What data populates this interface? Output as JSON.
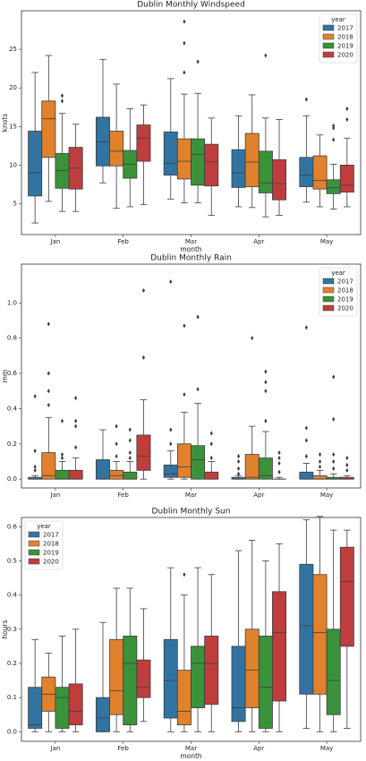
{
  "chart_data": [
    {
      "type": "box",
      "title": "Dublin Monthly Windspeed",
      "xlabel": "month",
      "ylabel": "knots",
      "categories": [
        "Jan",
        "Feb",
        "Mar",
        "Apr",
        "May"
      ],
      "legend_title": "year",
      "legend": "upper right",
      "ylim": [
        1,
        30
      ],
      "yticks": [
        5,
        10,
        15,
        20,
        25
      ],
      "series": [
        {
          "name": "2017",
          "color": "#3274a1",
          "values": [
            {
              "min": 2.5,
              "q1": 6,
              "median": 9,
              "q3": 14.4,
              "max": 22,
              "outliers": []
            },
            {
              "min": 7.7,
              "q1": 9.9,
              "median": 13,
              "q3": 16.2,
              "max": 23.7,
              "outliers": []
            },
            {
              "min": 5.6,
              "q1": 8.7,
              "median": 10.2,
              "q3": 14.3,
              "max": 21.2,
              "outliers": []
            },
            {
              "min": 4.6,
              "q1": 7.1,
              "median": 9,
              "q3": 12,
              "max": 16.4,
              "outliers": []
            },
            {
              "min": 5.2,
              "q1": 7.2,
              "median": 8.7,
              "q3": 11,
              "max": 16.4,
              "outliers": [
                18.5
              ]
            }
          ]
        },
        {
          "name": "2018",
          "color": "#e1812c",
          "values": [
            {
              "min": 5.3,
              "q1": 11,
              "median": 16,
              "q3": 18.3,
              "max": 24.2,
              "outliers": []
            },
            {
              "min": 4.4,
              "q1": 9.9,
              "median": 11.8,
              "q3": 14.4,
              "max": 20.5,
              "outliers": []
            },
            {
              "min": 5.1,
              "q1": 8.2,
              "median": 10.5,
              "q3": 13.4,
              "max": 19.2,
              "outliers": [
                22,
                25.8,
                28.6
              ]
            },
            {
              "min": 4.5,
              "q1": 7.2,
              "median": 10.4,
              "q3": 14.1,
              "max": 19.1,
              "outliers": []
            },
            {
              "min": 4.6,
              "q1": 6.9,
              "median": 8,
              "q3": 11.2,
              "max": 13.9,
              "outliers": []
            }
          ]
        },
        {
          "name": "2019",
          "color": "#3a923a",
          "values": [
            {
              "min": 4,
              "q1": 7,
              "median": 9.3,
              "q3": 11.5,
              "max": 16.7,
              "outliers": [
                18.3,
                19
              ]
            },
            {
              "min": 4.6,
              "q1": 8.3,
              "median": 10.1,
              "q3": 11.9,
              "max": 17.3,
              "outliers": []
            },
            {
              "min": 5.1,
              "q1": 7.4,
              "median": 11.4,
              "q3": 13.4,
              "max": 19.3,
              "outliers": [
                23.4
              ]
            },
            {
              "min": 3.3,
              "q1": 6.4,
              "median": 7.7,
              "q3": 11.8,
              "max": 16.1,
              "outliers": [
                24.2
              ]
            },
            {
              "min": 4.3,
              "q1": 6.3,
              "median": 7.1,
              "q3": 8.1,
              "max": 10.1,
              "outliers": [
                13.3,
                14.8,
                15.1
              ]
            }
          ]
        },
        {
          "name": "2020",
          "color": "#c03d3e",
          "values": [
            {
              "min": 4,
              "q1": 6.9,
              "median": 9.6,
              "q3": 12.3,
              "max": 15.3,
              "outliers": []
            },
            {
              "min": 4.9,
              "q1": 10.5,
              "median": 13.5,
              "q3": 15.2,
              "max": 17.8,
              "outliers": []
            },
            {
              "min": 3.5,
              "q1": 7.3,
              "median": 10.4,
              "q3": 12.7,
              "max": 16.1,
              "outliers": []
            },
            {
              "min": 3.5,
              "q1": 5.5,
              "median": 7.6,
              "q3": 10.7,
              "max": 15.9,
              "outliers": []
            },
            {
              "min": 4.6,
              "q1": 6.5,
              "median": 7.4,
              "q3": 10,
              "max": 13.5,
              "outliers": [
                15.9,
                17.3
              ]
            }
          ]
        }
      ]
    },
    {
      "type": "box",
      "title": "Dublin Monthly Rain",
      "ylabel": "mm",
      "categories": [
        "Jan",
        "Feb",
        "Mar",
        "Apr",
        "May"
      ],
      "legend_title": "year",
      "legend": "upper right",
      "ylim": [
        -0.05,
        1.22
      ],
      "yticks": [
        {
          "value": 0,
          "label": "0.0"
        },
        0.2,
        0.4,
        0.6,
        0.8,
        {
          "value": 1,
          "label": "1.0"
        }
      ],
      "series": [
        {
          "name": "2017",
          "color": "#3274a1",
          "values": [
            {
              "min": 0,
              "q1": 0,
              "median": 0,
              "q3": 0.01,
              "max": 0.02,
              "outliers": [
                0.05,
                0.07,
                0.16,
                0.47
              ]
            },
            {
              "min": 0,
              "q1": 0,
              "median": 0,
              "q3": 0.11,
              "max": 0.28,
              "outliers": []
            },
            {
              "min": 0,
              "q1": 0.01,
              "median": 0.03,
              "q3": 0.08,
              "max": 0.16,
              "outliers": [
                0.2,
                0.28,
                1.12
              ]
            },
            {
              "min": 0,
              "q1": 0,
              "median": 0,
              "q3": 0.01,
              "max": 0.02,
              "outliers": [
                0.03,
                0.06,
                0.1,
                0.13
              ]
            },
            {
              "min": 0,
              "q1": 0,
              "median": 0,
              "q3": 0.04,
              "max": 0.09,
              "outliers": [
                0.13,
                0.22,
                0.29,
                0.86
              ]
            }
          ]
        },
        {
          "name": "2018",
          "color": "#e1812c",
          "values": [
            {
              "min": 0,
              "q1": 0,
              "median": 0.02,
              "q3": 0.15,
              "max": 0.35,
              "outliers": [
                0.42,
                0.5,
                0.6,
                0.88
              ]
            },
            {
              "min": 0,
              "q1": 0,
              "median": 0.02,
              "q3": 0.05,
              "max": 0.1,
              "outliers": [
                0.13,
                0.2,
                0.3
              ]
            },
            {
              "min": 0,
              "q1": 0.01,
              "median": 0.07,
              "q3": 0.2,
              "max": 0.38,
              "outliers": [
                0.48,
                0.87
              ]
            },
            {
              "min": 0,
              "q1": 0,
              "median": 0.01,
              "q3": 0.14,
              "max": 0.3,
              "outliers": [
                0.8
              ]
            },
            {
              "min": 0,
              "q1": 0,
              "median": 0,
              "q3": 0.02,
              "max": 0.05,
              "outliers": [
                0.07,
                0.1,
                0.14
              ]
            }
          ]
        },
        {
          "name": "2019",
          "color": "#3a923a",
          "values": [
            {
              "min": 0,
              "q1": 0,
              "median": 0,
              "q3": 0.05,
              "max": 0.1,
              "outliers": [
                0.12,
                0.14,
                0.33
              ]
            },
            {
              "min": 0,
              "q1": 0,
              "median": 0,
              "q3": 0.04,
              "max": 0.1,
              "outliers": [
                0.12,
                0.15,
                0.22,
                0.28
              ]
            },
            {
              "min": 0,
              "q1": 0,
              "median": 0.11,
              "q3": 0.19,
              "max": 0.43,
              "outliers": [
                0.51,
                0.92
              ]
            },
            {
              "min": 0,
              "q1": 0,
              "median": 0.02,
              "q3": 0.12,
              "max": 0.27,
              "outliers": [
                0.33,
                0.5,
                0.55,
                0.61
              ]
            },
            {
              "min": 0,
              "q1": 0,
              "median": 0,
              "q3": 0.01,
              "max": 0.03,
              "outliers": [
                0.06,
                0.1,
                0.14,
                0.34,
                0.58
              ]
            }
          ]
        },
        {
          "name": "2020",
          "color": "#c03d3e",
          "values": [
            {
              "min": 0,
              "q1": 0,
              "median": 0,
              "q3": 0.05,
              "max": 0.12,
              "outliers": [
                0.18,
                0.3,
                0.33,
                0.46
              ]
            },
            {
              "min": 0,
              "q1": 0.05,
              "median": 0.13,
              "q3": 0.25,
              "max": 0.45,
              "outliers": [
                0.69,
                1.07
              ]
            },
            {
              "min": 0,
              "q1": 0,
              "median": 0,
              "q3": 0.04,
              "max": 0.1,
              "outliers": [
                0.12,
                0.2,
                0.26
              ]
            },
            {
              "min": 0,
              "q1": 0,
              "median": 0,
              "q3": 0,
              "max": 0.01,
              "outliers": [
                0.04,
                0.09,
                0.12,
                0.15
              ]
            },
            {
              "min": 0,
              "q1": 0,
              "median": 0,
              "q3": 0.01,
              "max": 0.02,
              "outliers": [
                0.05,
                0.08,
                0.12
              ]
            }
          ]
        }
      ]
    },
    {
      "type": "box",
      "title": "Dublin Monthly Sun",
      "xlabel": "month",
      "ylabel": "hours",
      "categories": [
        "Jan",
        "Feb",
        "Mar",
        "Apr",
        "May"
      ],
      "legend_title": "year",
      "legend": "upper left",
      "ylim": [
        -0.028,
        0.627
      ],
      "yticks": [
        {
          "value": 0,
          "label": "0.0"
        },
        0.1,
        0.2,
        0.3,
        0.4,
        0.5,
        0.6
      ],
      "series": [
        {
          "name": "2017",
          "color": "#3274a1",
          "values": [
            {
              "min": 0,
              "q1": 0.01,
              "median": 0.02,
              "q3": 0.13,
              "max": 0.27,
              "outliers": []
            },
            {
              "min": 0,
              "q1": 0,
              "median": 0.04,
              "q3": 0.1,
              "max": 0.32,
              "outliers": []
            },
            {
              "min": 0,
              "q1": 0.04,
              "median": 0.15,
              "q3": 0.27,
              "max": 0.48,
              "outliers": []
            },
            {
              "min": 0,
              "q1": 0.03,
              "median": 0.07,
              "q3": 0.25,
              "max": 0.53,
              "outliers": []
            },
            {
              "min": 0.01,
              "q1": 0.11,
              "median": 0.31,
              "q3": 0.49,
              "max": 0.62,
              "outliers": []
            }
          ]
        },
        {
          "name": "2018",
          "color": "#e1812c",
          "values": [
            {
              "min": 0,
              "q1": 0.06,
              "median": 0.11,
              "q3": 0.16,
              "max": 0.23,
              "outliers": []
            },
            {
              "min": 0,
              "q1": 0.05,
              "median": 0.12,
              "q3": 0.27,
              "max": 0.42,
              "outliers": []
            },
            {
              "min": 0,
              "q1": 0.02,
              "median": 0.06,
              "q3": 0.18,
              "max": 0.4,
              "outliers": [
                0.46
              ]
            },
            {
              "min": 0,
              "q1": 0.07,
              "median": 0.18,
              "q3": 0.3,
              "max": 0.56,
              "outliers": []
            },
            {
              "min": 0,
              "q1": 0.11,
              "median": 0.29,
              "q3": 0.46,
              "max": 0.63,
              "outliers": []
            }
          ]
        },
        {
          "name": "2019",
          "color": "#3a923a",
          "values": [
            {
              "min": 0,
              "q1": 0.01,
              "median": 0.1,
              "q3": 0.13,
              "max": 0.28,
              "outliers": []
            },
            {
              "min": 0,
              "q1": 0.02,
              "median": 0.2,
              "q3": 0.28,
              "max": 0.42,
              "outliers": []
            },
            {
              "min": 0,
              "q1": 0.07,
              "median": 0.2,
              "q3": 0.25,
              "max": 0.48,
              "outliers": []
            },
            {
              "min": 0,
              "q1": 0.01,
              "median": 0.13,
              "q3": 0.28,
              "max": 0.5,
              "outliers": []
            },
            {
              "min": 0,
              "q1": 0.05,
              "median": 0.15,
              "q3": 0.3,
              "max": 0.59,
              "outliers": []
            }
          ]
        },
        {
          "name": "2020",
          "color": "#c03d3e",
          "values": [
            {
              "min": 0,
              "q1": 0.02,
              "median": 0.06,
              "q3": 0.14,
              "max": 0.3,
              "outliers": []
            },
            {
              "min": 0.03,
              "q1": 0.1,
              "median": 0.13,
              "q3": 0.21,
              "max": 0.36,
              "outliers": []
            },
            {
              "min": 0,
              "q1": 0.08,
              "median": 0.2,
              "q3": 0.28,
              "max": 0.46,
              "outliers": []
            },
            {
              "min": 0,
              "q1": 0.09,
              "median": 0.29,
              "q3": 0.41,
              "max": 0.55,
              "outliers": []
            },
            {
              "min": 0.01,
              "q1": 0.25,
              "median": 0.44,
              "q3": 0.54,
              "max": 0.59,
              "outliers": []
            }
          ]
        }
      ]
    }
  ]
}
